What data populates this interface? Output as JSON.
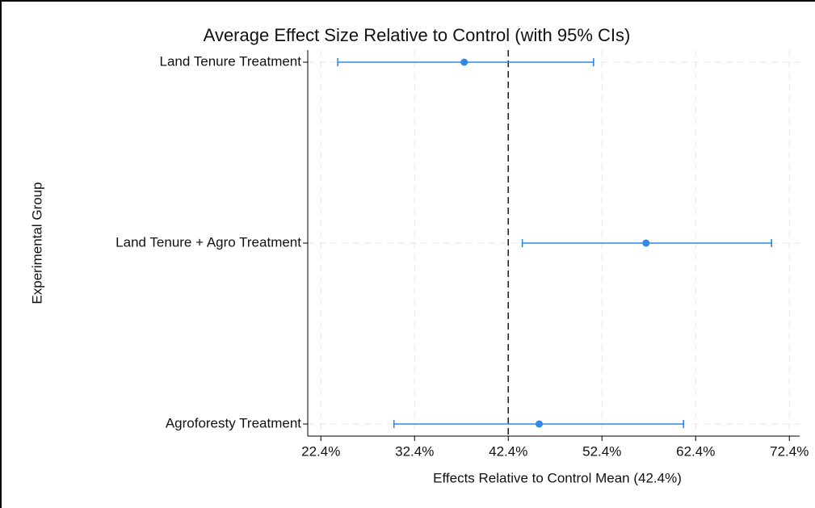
{
  "chart_data": {
    "type": "dot_errorbar",
    "title": "Average Effect Size Relative to Control (with 95% CIs)",
    "x_label": "Effects Relative to Control Mean (42.4%)",
    "y_label": "Experimental Group",
    "categories": [
      "Land Tenure Treatment",
      "Land Tenure + Agro Treatment",
      "Agroforesty Treatment"
    ],
    "values": [
      37.7,
      57.1,
      45.7
    ],
    "lower": [
      24.2,
      43.9,
      30.2
    ],
    "upper": [
      51.5,
      70.5,
      61.1
    ],
    "color": "#2f88ea",
    "reference_line": 42.4,
    "xlim": [
      21.0,
      73.5
    ],
    "xticks": [
      {
        "value": 22.4,
        "label": "22.4%"
      },
      {
        "value": 32.4,
        "label": "32.4%"
      },
      {
        "value": 42.4,
        "label": "42.4%"
      },
      {
        "value": 52.4,
        "label": "52.4%"
      },
      {
        "value": 62.4,
        "label": "62.4%"
      },
      {
        "value": 72.4,
        "label": "72.4%"
      }
    ],
    "grid": true
  }
}
